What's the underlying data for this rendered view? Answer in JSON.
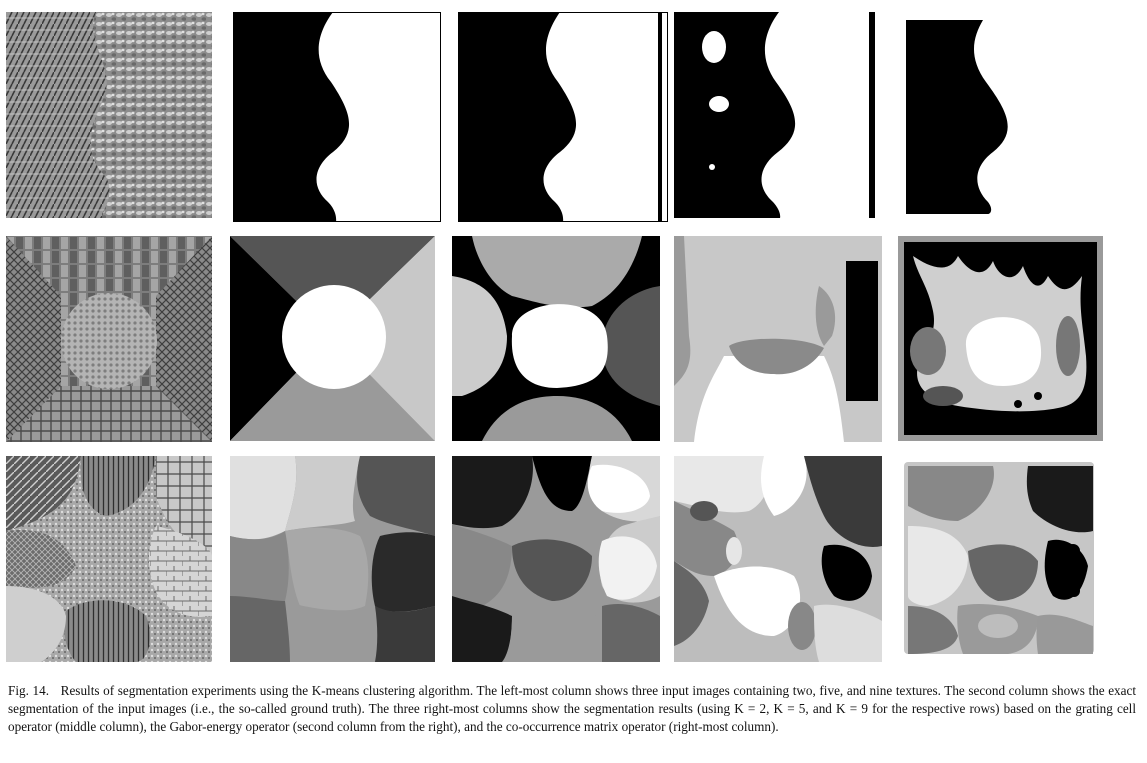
{
  "figure": {
    "label": "Fig. 14.",
    "caption": "Results of segmentation experiments using the K-means clustering algorithm. The left-most column shows three input images containing two, five, and nine textures. The second column shows the exact segmentation of the input images (i.e., the so-called ground truth). The three right-most columns show the segmentation results (using K = 2, K = 5, and K = 9 for the respective rows) based on the grating cell operator (middle column), the Gabor-energy operator (second column from the right), and the co-occurrence matrix operator (right-most column)."
  }
}
